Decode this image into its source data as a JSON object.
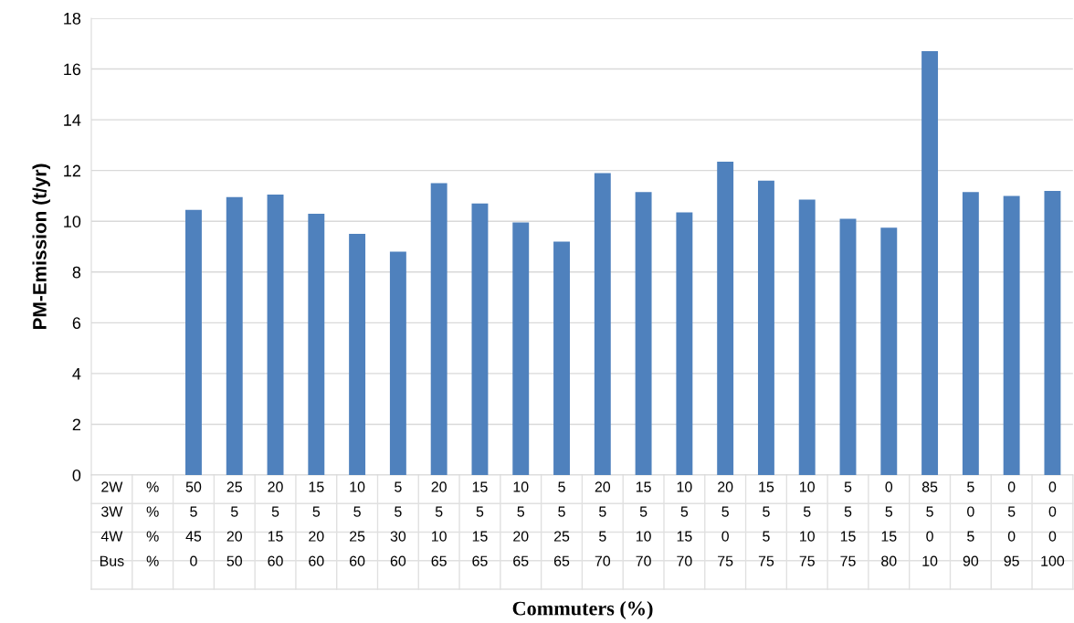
{
  "chart_data": {
    "type": "bar",
    "ylabel": "PM-Emission (t/yr)",
    "xlabel": "Commuters (%)",
    "categories": [
      "2W\n3W\n4W\nBus",
      "%\n%\n%\n%",
      "50\n5\n45\n0",
      "25\n5\n20\n50",
      "20\n5\n15\n60",
      "15\n5\n20\n60",
      "10\n5\n25\n60",
      "5\n5\n30\n60",
      "20\n5\n10\n65",
      "15\n5\n15\n65",
      "10\n5\n20\n65",
      "5\n5\n25\n65",
      "20\n5\n5\n70",
      "15\n5\n10\n70",
      "10\n5\n15\n70",
      "20\n5\n0\n75",
      "15\n5\n5\n75",
      "10\n5\n10\n75",
      "5\n5\n15\n75",
      "0\n5\n15\n80",
      "85\n5\n0\n10",
      "5\n0\n5\n90",
      "0\n5\n0\n95",
      "0\n0\n0\n100"
    ],
    "values": [
      null,
      null,
      10.45,
      10.95,
      11.05,
      10.3,
      9.5,
      8.8,
      11.5,
      10.7,
      9.95,
      9.2,
      11.9,
      11.15,
      10.35,
      12.35,
      11.6,
      10.85,
      10.1,
      9.75,
      16.7,
      11.15,
      11.0,
      11.2
    ],
    "color": "#4f81bd",
    "ylim": [
      0,
      18
    ],
    "yticks": [
      0,
      2,
      4,
      6,
      8,
      10,
      12,
      14,
      16,
      18
    ],
    "grid": "y",
    "legend": false
  }
}
